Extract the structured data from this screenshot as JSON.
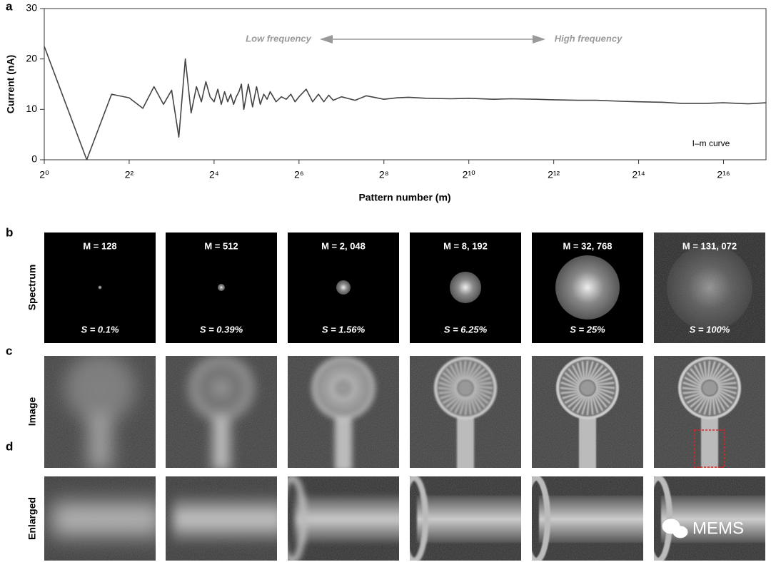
{
  "chart_data": {
    "type": "line",
    "xscale": "log2",
    "ylabel": "Current (nA)",
    "xlabel": "Pattern number (m)",
    "annotations": [
      "Low frequency",
      "High frequency",
      "I–m curve"
    ],
    "xlim": [
      1,
      131072
    ],
    "ylim": [
      0,
      30
    ],
    "yticks": [
      0,
      10,
      20,
      30
    ],
    "xticks": [
      {
        "value": 1,
        "label": "2⁰"
      },
      {
        "value": 4,
        "label": "2²"
      },
      {
        "value": 16,
        "label": "2⁴"
      },
      {
        "value": 64,
        "label": "2⁶"
      },
      {
        "value": 256,
        "label": "2⁸"
      },
      {
        "value": 1024,
        "label": "2¹⁰"
      },
      {
        "value": 4096,
        "label": "2¹²"
      },
      {
        "value": 16384,
        "label": "2¹⁴"
      },
      {
        "value": 65536,
        "label": "2¹⁶"
      }
    ],
    "x": [
      1,
      2,
      3,
      4,
      5,
      6,
      7,
      8,
      9,
      10,
      11,
      12,
      13,
      14,
      15,
      16,
      17,
      18,
      19,
      20,
      21,
      22,
      23,
      24,
      25,
      26,
      28,
      30,
      32,
      34,
      36,
      38,
      40,
      44,
      48,
      52,
      56,
      60,
      64,
      72,
      80,
      88,
      96,
      104,
      112,
      128,
      160,
      192,
      256,
      320,
      384,
      512,
      768,
      1024,
      1536,
      2048,
      3072,
      4096,
      6144,
      8192,
      12288,
      16384,
      24576,
      32768,
      49152,
      65536,
      98304,
      131072
    ],
    "series": [
      {
        "color": "#444444",
        "values": [
          22.5,
          0,
          13,
          12.3,
          10.2,
          14.5,
          11,
          13.8,
          4.5,
          20,
          9.3,
          14.5,
          11.5,
          15.5,
          12.5,
          11.5,
          14,
          11,
          13.5,
          11.5,
          13,
          11,
          12.5,
          13.5,
          15,
          10,
          15,
          10.5,
          14.5,
          11,
          13,
          12,
          13.5,
          11.5,
          12.5,
          12,
          13,
          11.5,
          12.5,
          14,
          11.5,
          13,
          11.5,
          12.8,
          11.8,
          12.5,
          11.8,
          12.7,
          12,
          12.3,
          12.4,
          12.2,
          12.1,
          12.2,
          12.0,
          12.1,
          12.0,
          11.9,
          11.8,
          11.8,
          11.6,
          11.5,
          11.4,
          11.2,
          11.2,
          11.3,
          11.1,
          11.3
        ]
      }
    ]
  },
  "panel_letters": [
    "a",
    "b",
    "c",
    "d"
  ],
  "rows": [
    "Spectrum",
    "Image",
    "Enlarged"
  ],
  "columns": [
    {
      "m": "M = 128",
      "s": "S = 0.1%"
    },
    {
      "m": "M = 512",
      "s": "S = 0.39%"
    },
    {
      "m": "M = 2, 048",
      "s": "S = 1.56%"
    },
    {
      "m": "M = 8, 192",
      "s": "S = 6.25%"
    },
    {
      "m": "M = 32, 768",
      "s": "S = 25%"
    },
    {
      "m": "M = 131, 072",
      "s": "S = 100%"
    }
  ],
  "watermark": "MEMS"
}
